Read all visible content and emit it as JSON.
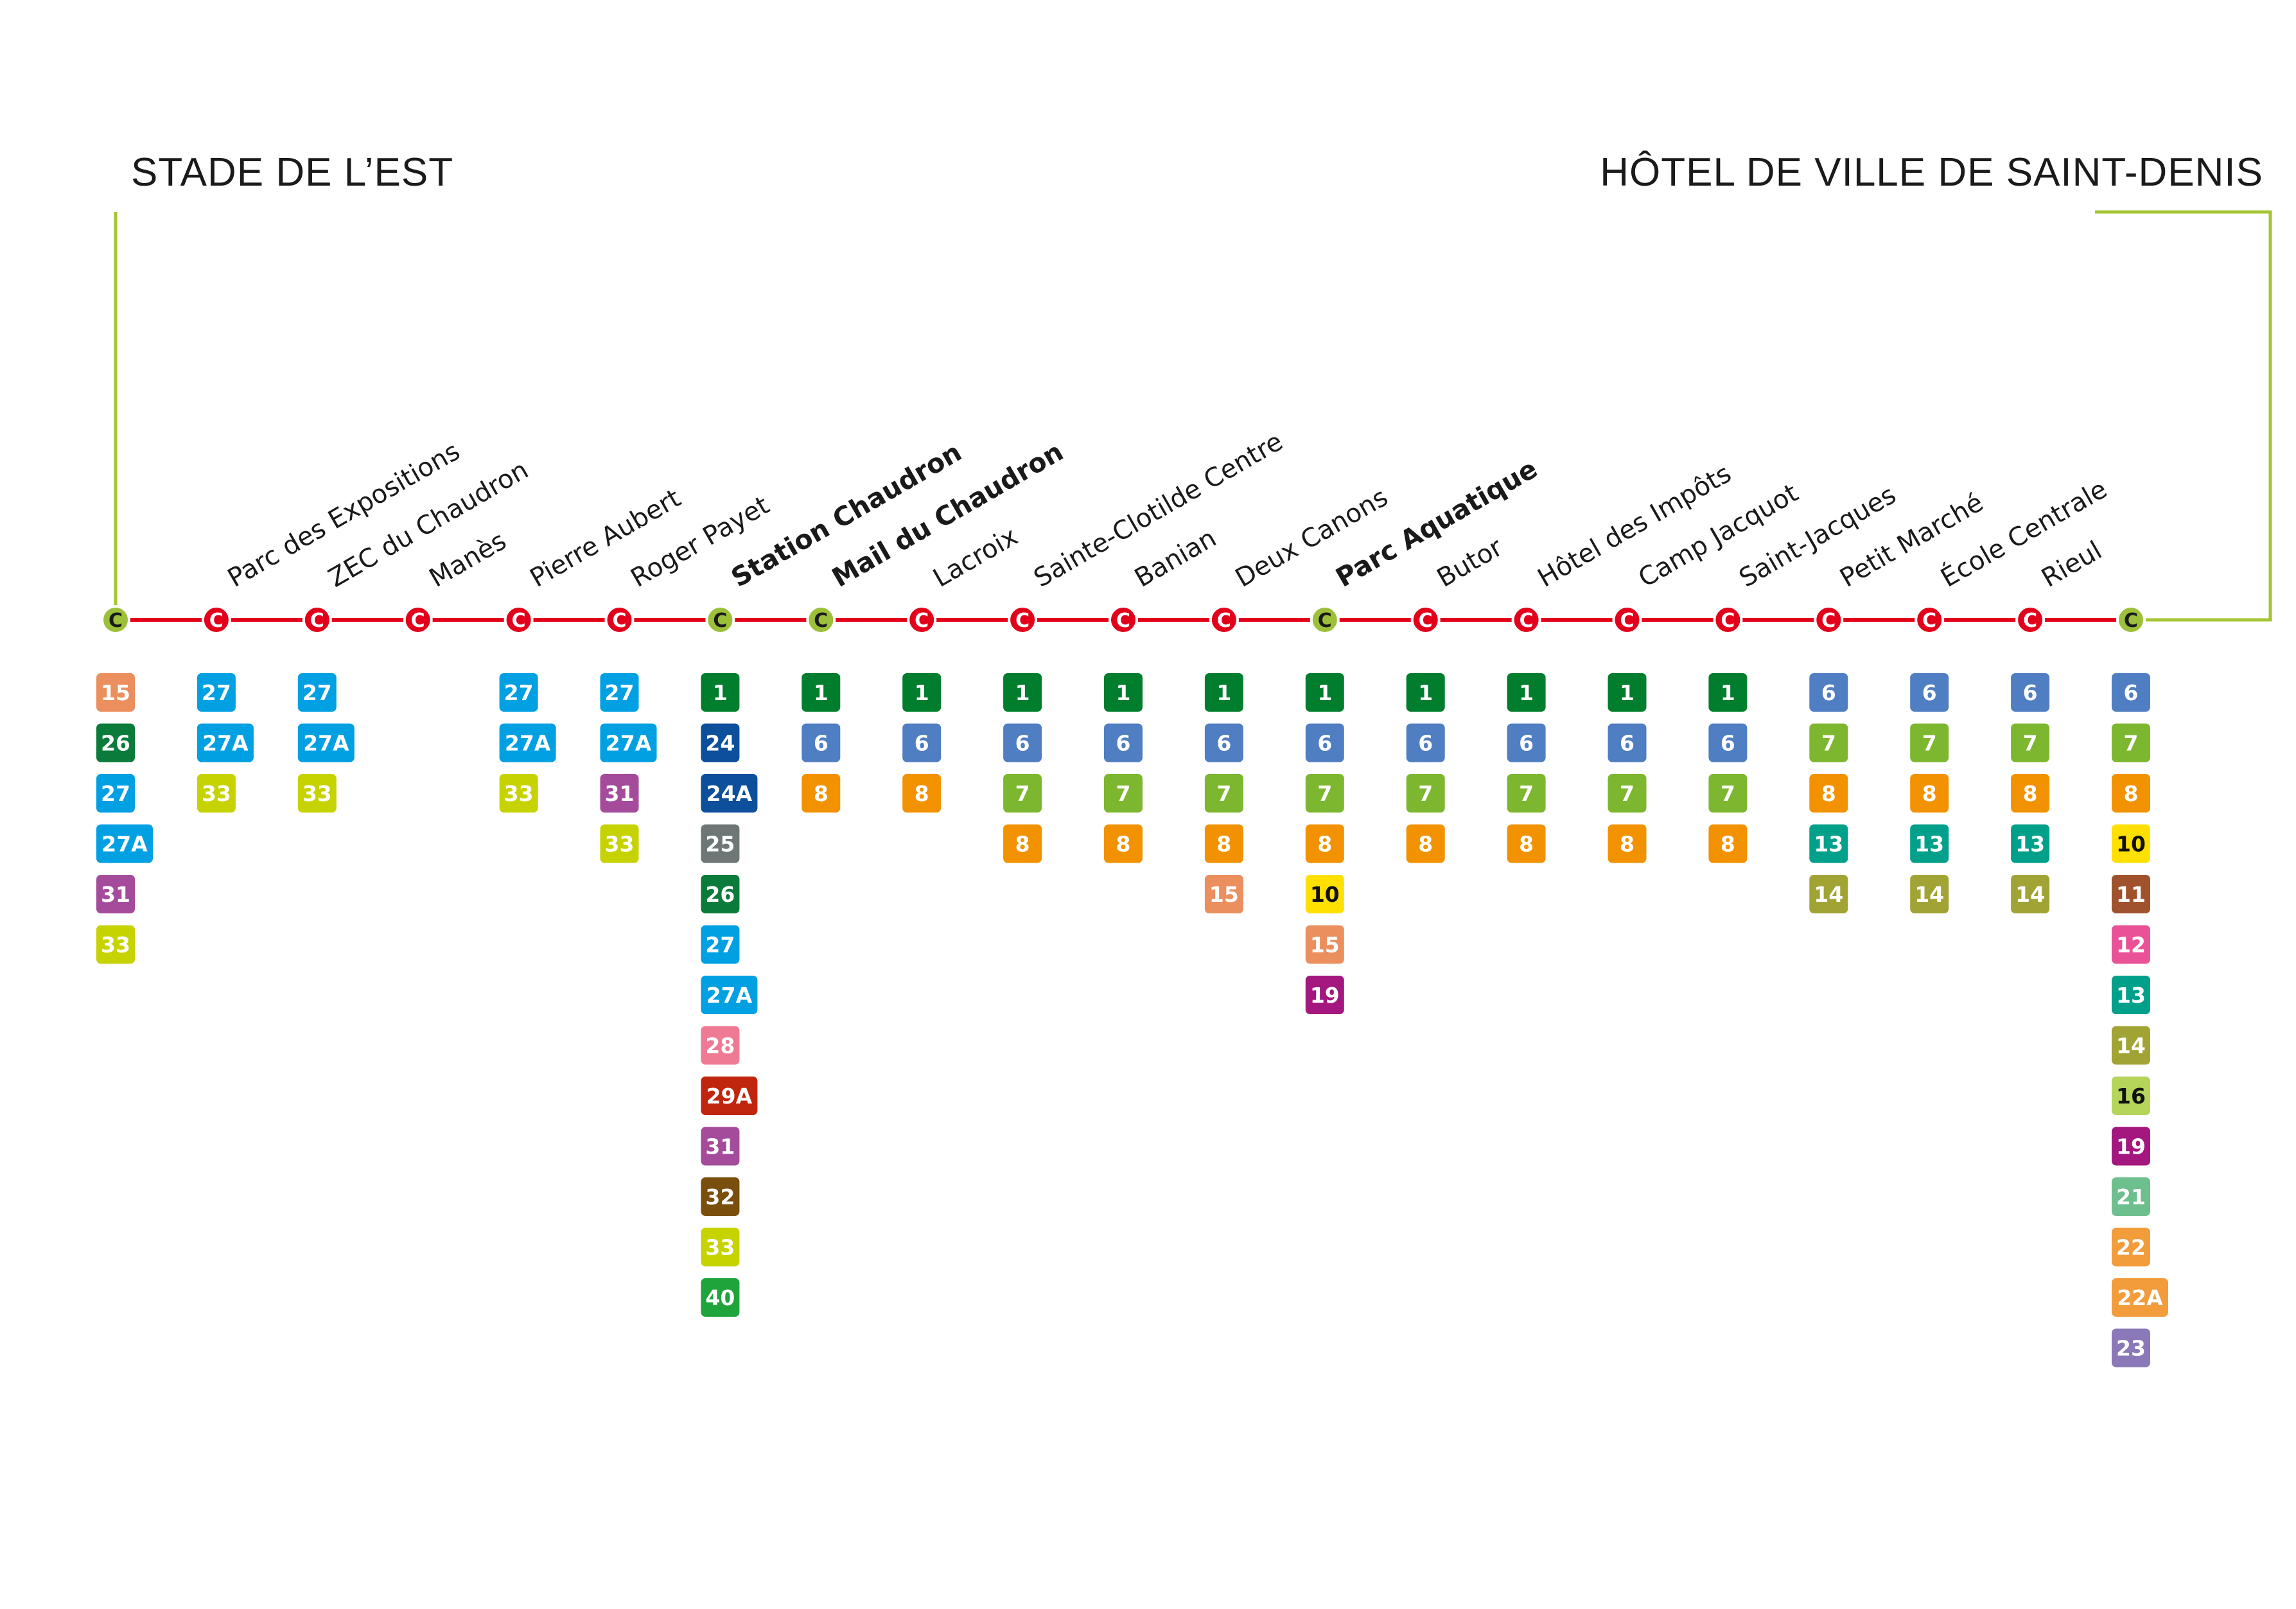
{
  "line_badge": "C",
  "colors": {
    "line_red": "#e2001a",
    "connector_green": "#a5c632",
    "terminus_green": "#9dc03a",
    "text_dark": "#1a1a1a"
  },
  "termini": {
    "left": "STADE DE L’EST",
    "right": "HÔTEL DE VILLE DE SAINT-DENIS"
  },
  "route_colors": {
    "1": "#007e2e",
    "6": "#4f7ec2",
    "7": "#7db72f",
    "8": "#f39200",
    "10": "#ffe000",
    "11": "#a0522d",
    "12": "#ea5297",
    "13": "#00a08a",
    "14": "#a1a435",
    "15": "#eb8f5e",
    "16": "#b4d55a",
    "19": "#a3177f",
    "21": "#6dbf8e",
    "22": "#f39c3c",
    "22A": "#f39c3c",
    "23": "#8a78b8",
    "24": "#0e4f9c",
    "24A": "#0e4f9c",
    "25": "#6e7776",
    "26": "#0a7b3a",
    "27": "#00a0e3",
    "27A": "#00a0e3",
    "28": "#ef7a94",
    "29A": "#c0260d",
    "31": "#a54b9c",
    "32": "#7a4e0c",
    "33": "#c6d300",
    "40": "#1fa43c"
  },
  "dark_text_routes": [
    "10",
    "16"
  ],
  "stops": [
    {
      "name": "",
      "bold": false,
      "terminus": true,
      "routes": [
        "15",
        "26",
        "27",
        "27A",
        "31",
        "33"
      ]
    },
    {
      "name": "Parc des Expositions",
      "bold": false,
      "terminus": false,
      "routes": [
        "27",
        "27A",
        "33"
      ]
    },
    {
      "name": "ZEC du Chaudron",
      "bold": false,
      "terminus": false,
      "routes": [
        "27",
        "27A",
        "33"
      ]
    },
    {
      "name": "Manès",
      "bold": false,
      "terminus": false,
      "routes": []
    },
    {
      "name": "Pierre Aubert",
      "bold": false,
      "terminus": false,
      "routes": [
        "27",
        "27A",
        "33"
      ]
    },
    {
      "name": "Roger Payet",
      "bold": false,
      "terminus": false,
      "routes": [
        "27",
        "27A",
        "31",
        "33"
      ]
    },
    {
      "name": "Station Chaudron",
      "bold": true,
      "terminus": true,
      "routes": [
        "1",
        "24",
        "24A",
        "25",
        "26",
        "27",
        "27A",
        "28",
        "29A",
        "31",
        "32",
        "33",
        "40"
      ]
    },
    {
      "name": "Mail du Chaudron",
      "bold": true,
      "terminus": true,
      "routes": [
        "1",
        "6",
        "8"
      ]
    },
    {
      "name": "Lacroix",
      "bold": false,
      "terminus": false,
      "routes": [
        "1",
        "6",
        "8"
      ]
    },
    {
      "name": "Sainte-Clotilde Centre",
      "bold": false,
      "terminus": false,
      "routes": [
        "1",
        "6",
        "7",
        "8"
      ]
    },
    {
      "name": "Banian",
      "bold": false,
      "terminus": false,
      "routes": [
        "1",
        "6",
        "7",
        "8"
      ]
    },
    {
      "name": "Deux Canons",
      "bold": false,
      "terminus": false,
      "routes": [
        "1",
        "6",
        "7",
        "8",
        "15"
      ]
    },
    {
      "name": "Parc Aquatique",
      "bold": true,
      "terminus": true,
      "routes": [
        "1",
        "6",
        "7",
        "8",
        "10",
        "15",
        "19"
      ]
    },
    {
      "name": "Butor",
      "bold": false,
      "terminus": false,
      "routes": [
        "1",
        "6",
        "7",
        "8"
      ]
    },
    {
      "name": "Hôtel des Impôts",
      "bold": false,
      "terminus": false,
      "routes": [
        "1",
        "6",
        "7",
        "8"
      ]
    },
    {
      "name": "Camp Jacquot",
      "bold": false,
      "terminus": false,
      "routes": [
        "1",
        "6",
        "7",
        "8"
      ]
    },
    {
      "name": "Saint-Jacques",
      "bold": false,
      "terminus": false,
      "routes": [
        "1",
        "6",
        "7",
        "8"
      ]
    },
    {
      "name": "Petit Marché",
      "bold": false,
      "terminus": false,
      "routes": [
        "6",
        "7",
        "8",
        "13",
        "14"
      ]
    },
    {
      "name": "École Centrale",
      "bold": false,
      "terminus": false,
      "routes": [
        "6",
        "7",
        "8",
        "13",
        "14"
      ]
    },
    {
      "name": "Rieul",
      "bold": false,
      "terminus": false,
      "routes": [
        "6",
        "7",
        "8",
        "13",
        "14"
      ]
    },
    {
      "name": "",
      "bold": false,
      "terminus": true,
      "routes": [
        "6",
        "7",
        "8",
        "10",
        "11",
        "12",
        "13",
        "14",
        "16",
        "19",
        "21",
        "22",
        "22A",
        "23"
      ]
    }
  ]
}
